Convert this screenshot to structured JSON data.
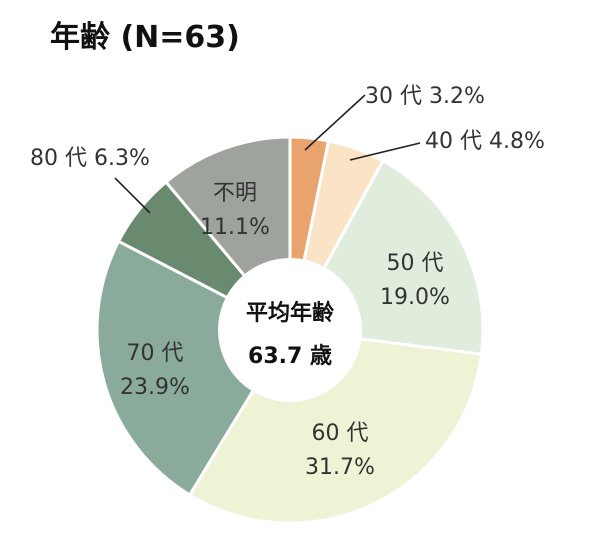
{
  "title": "年齢 (N=63)",
  "chart_data": {
    "type": "pie",
    "title": "年齢 (N=63)",
    "center_label": "平均年齢",
    "center_value": "63.7 歳",
    "unit": "%",
    "slices": [
      {
        "label": "30 代",
        "value": 3.2,
        "value_text": "3.2%",
        "color": "#e9a46e"
      },
      {
        "label": "40 代",
        "value": 4.8,
        "value_text": "4.8%",
        "color": "#fbe3c5"
      },
      {
        "label": "50 代",
        "value": 19.0,
        "value_text": "19.0%",
        "color": "#e0ecdc"
      },
      {
        "label": "60 代",
        "value": 31.7,
        "value_text": "31.7%",
        "color": "#eef3d6"
      },
      {
        "label": "70 代",
        "value": 23.9,
        "value_text": "23.9%",
        "color": "#8aaa9c"
      },
      {
        "label": "80 代",
        "value": 6.3,
        "value_text": "6.3%",
        "color": "#698a6f"
      },
      {
        "label": "不明",
        "value": 11.1,
        "value_text": "11.1%",
        "color": "#9ea49d"
      }
    ]
  }
}
